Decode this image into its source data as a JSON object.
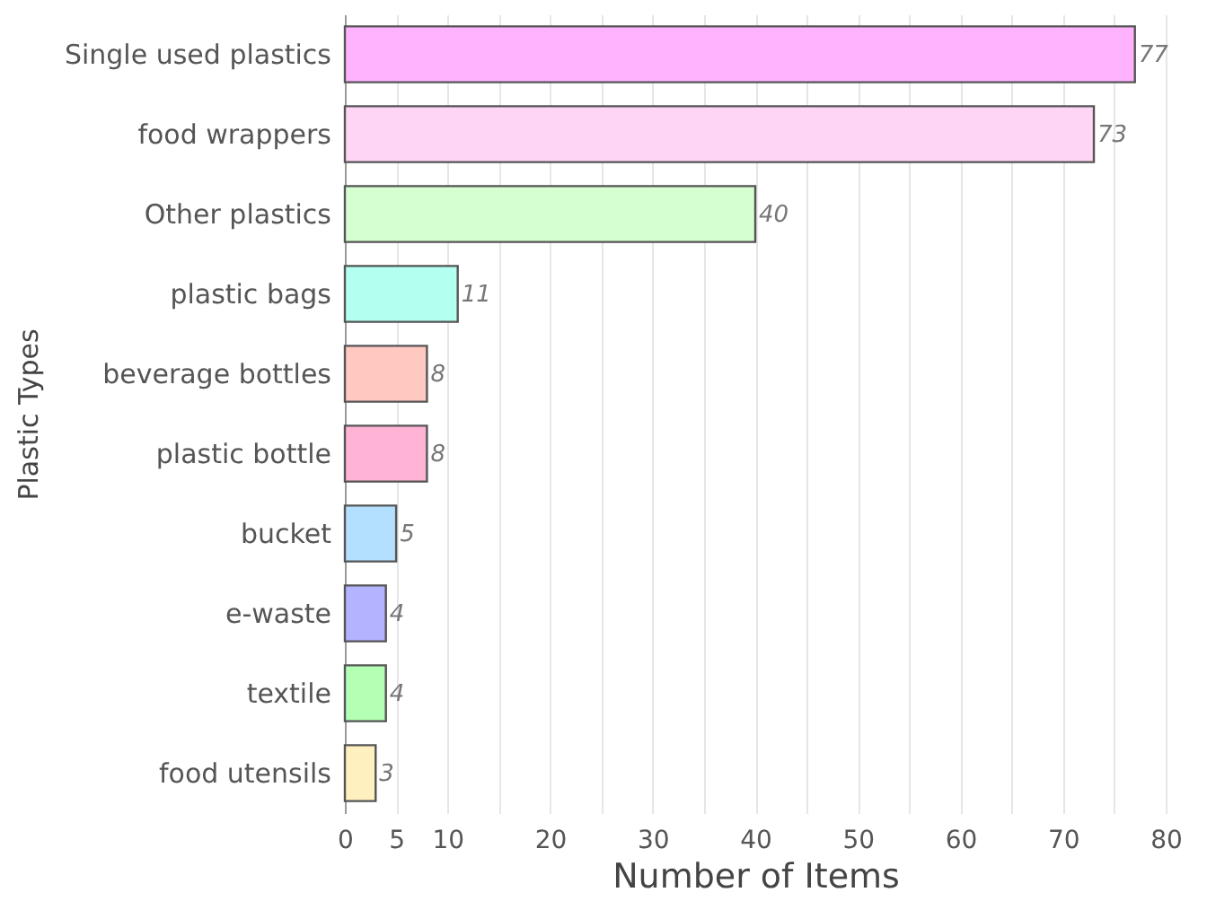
{
  "chart_data": {
    "type": "bar",
    "orientation": "horizontal",
    "xlabel": "Number of Items",
    "ylabel": "Plastic Types",
    "categories": [
      "Single used plastics",
      "food wrappers",
      "Other plastics",
      "plastic bags",
      "beverage bottles",
      "plastic bottle",
      "bucket",
      "e-waste",
      "textile",
      "food utensils"
    ],
    "values": [
      77,
      73,
      40,
      11,
      8,
      8,
      5,
      4,
      4,
      3
    ],
    "colors": [
      "#ffb3ff",
      "#ffd5f5",
      "#d5ffd0",
      "#b3fff0",
      "#ffc8c0",
      "#ffb3d5",
      "#b3e0ff",
      "#b3b3ff",
      "#b3ffb3",
      "#fff0c0"
    ],
    "xlim": [
      0,
      80
    ],
    "xticks": [
      0,
      5,
      10,
      {
        "value": 15,
        "label": null
      },
      20,
      {
        "value": 25,
        "label": null
      },
      30,
      {
        "value": 35,
        "label": null
      },
      40,
      {
        "value": 45,
        "label": null
      },
      50,
      {
        "value": 55,
        "label": null
      },
      60,
      {
        "value": 65,
        "label": null
      },
      70,
      {
        "value": 75,
        "label": null
      },
      80
    ],
    "grid": "x",
    "data_labels": true
  }
}
